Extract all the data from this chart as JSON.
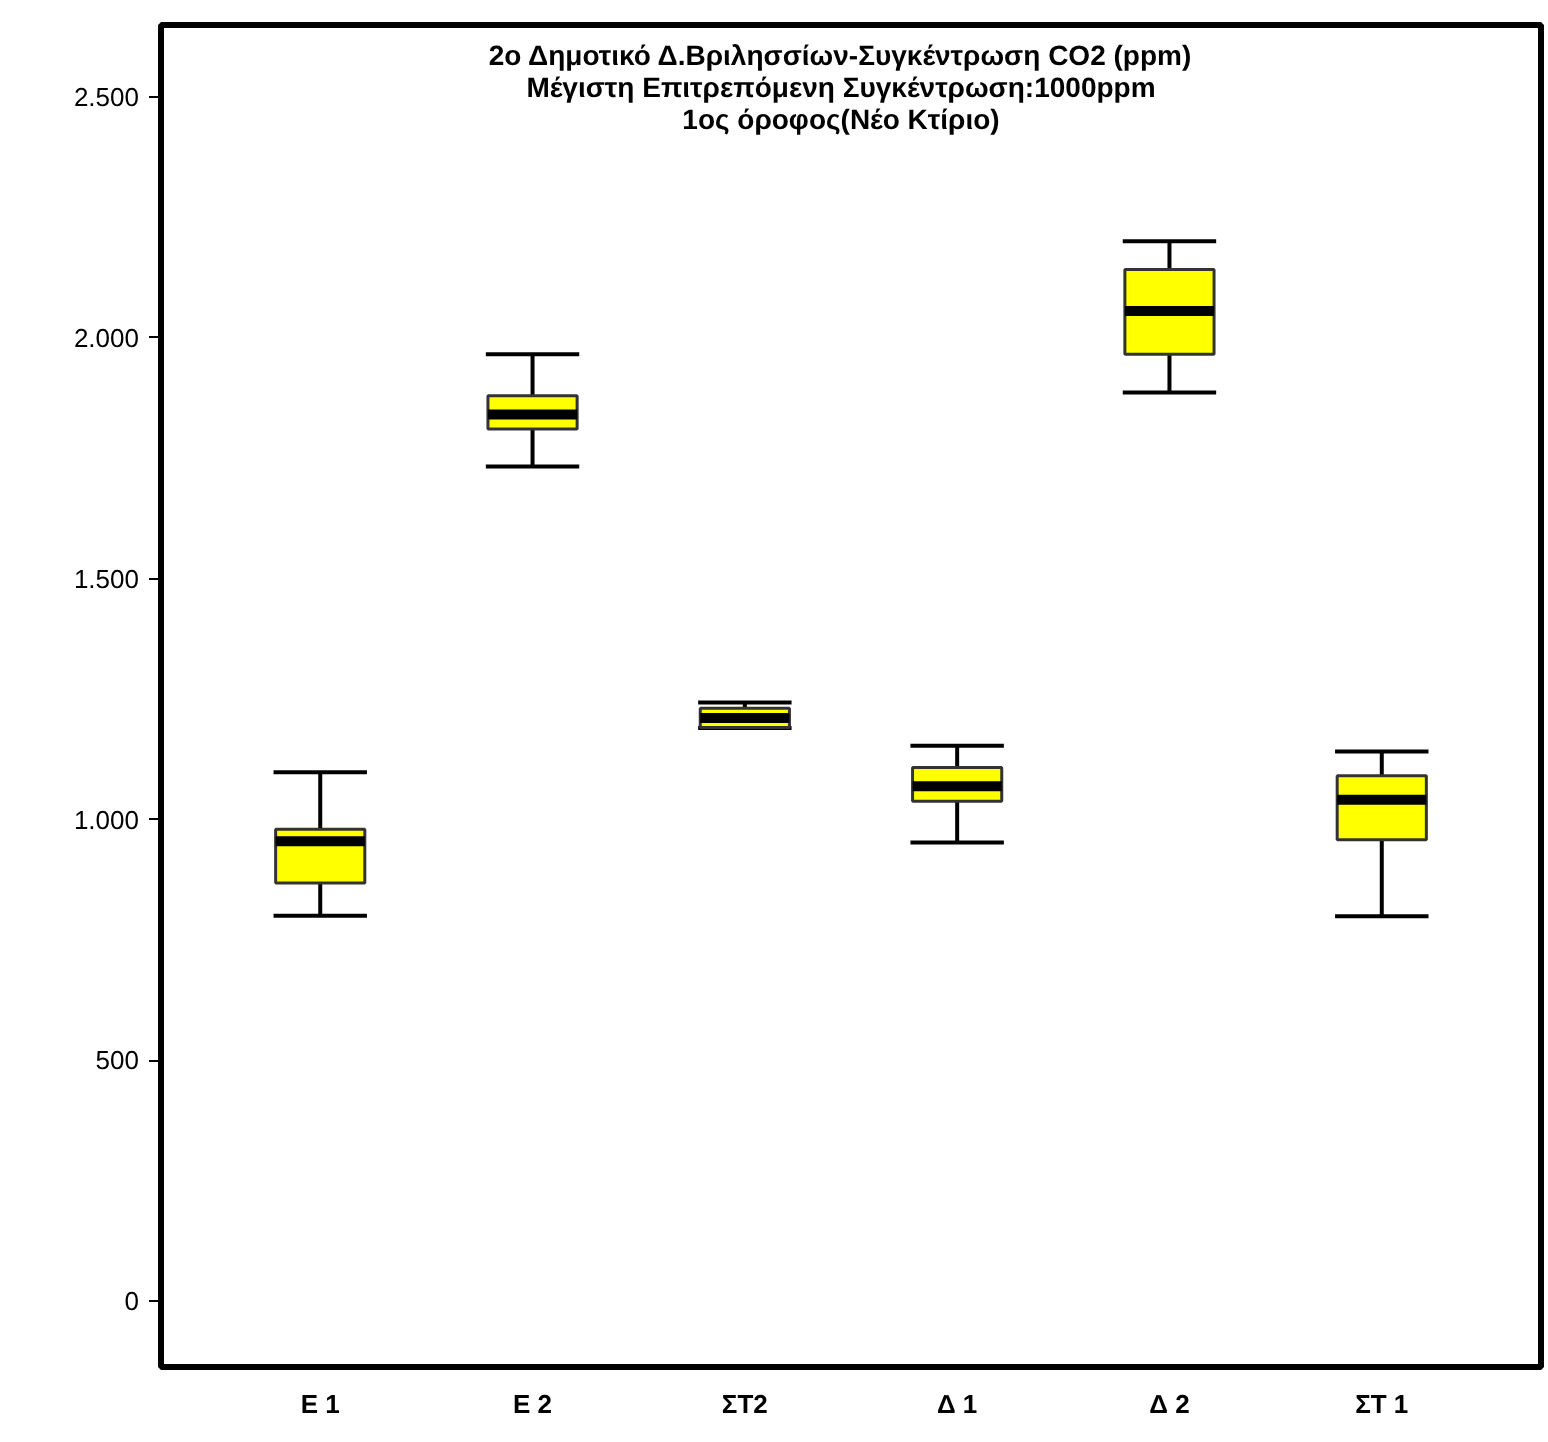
{
  "chart_data": {
    "type": "box",
    "title": "2ο Δημοτικό Δ.Βριλησσίων-Συγκέντρωση CO2 (ppm)\nΜέγιστη Επιτρεπόμενη Συγκέντρωση:1000ppm\n1ος όροφος(Νέο Κτίριο)",
    "categories": [
      "Ε 1",
      "Ε 2",
      "ΣΤ2",
      "Δ 1",
      "Δ 2",
      "ΣΤ 1"
    ],
    "color": "#ffff00",
    "boxes": [
      {
        "low": 800,
        "q1": 868,
        "median": 955,
        "q3": 980,
        "high": 1098
      },
      {
        "low": 1733,
        "q1": 1811,
        "median": 1841,
        "q3": 1880,
        "high": 1966
      },
      {
        "low": 1190,
        "q1": 1191,
        "median": 1211,
        "q3": 1231,
        "high": 1243
      },
      {
        "low": 952,
        "q1": 1038,
        "median": 1069,
        "q3": 1108,
        "high": 1153
      },
      {
        "low": 1887,
        "q1": 1966,
        "median": 2056,
        "q3": 2142,
        "high": 2201
      },
      {
        "low": 799,
        "q1": 958,
        "median": 1041,
        "q3": 1091,
        "high": 1141
      }
    ],
    "ylim": [
      -137,
      2650
    ],
    "yticks": [
      0,
      500,
      {
        "value": 1000,
        "label": "1.000"
      },
      {
        "value": 1500,
        "label": "1.500"
      },
      {
        "value": 2000,
        "label": "2.000"
      },
      {
        "value": 2500,
        "label": "2.500"
      }
    ],
    "grid": false
  }
}
